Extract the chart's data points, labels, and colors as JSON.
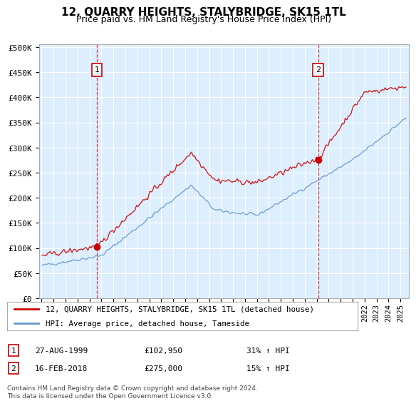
{
  "title": "12, QUARRY HEIGHTS, STALYBRIDGE, SK15 1TL",
  "subtitle": "Price paid vs. HM Land Registry's House Price Index (HPI)",
  "legend_line1": "12, QUARRY HEIGHTS, STALYBRIDGE, SK15 1TL (detached house)",
  "legend_line2": "HPI: Average price, detached house, Tameside",
  "annotation1_date": "27-AUG-1999",
  "annotation1_price": "£102,950",
  "annotation1_hpi": "31% ↑ HPI",
  "annotation2_date": "16-FEB-2018",
  "annotation2_price": "£275,000",
  "annotation2_hpi": "15% ↑ HPI",
  "footer": "Contains HM Land Registry data © Crown copyright and database right 2024.\nThis data is licensed under the Open Government Licence v3.0.",
  "plot_bg_color": "#ddeeff",
  "red_color": "#cc0000",
  "blue_color": "#6699cc",
  "yticks": [
    0,
    50000,
    100000,
    150000,
    200000,
    250000,
    300000,
    350000,
    400000,
    450000,
    500000
  ],
  "ylabels": [
    "£0",
    "£50K",
    "£100K",
    "£150K",
    "£200K",
    "£250K",
    "£300K",
    "£350K",
    "£400K",
    "£450K",
    "£500K"
  ],
  "year_start": 1995,
  "year_end": 2025,
  "sale1_t": 1999.625,
  "sale1_price": 102950,
  "sale2_t": 2018.125,
  "sale2_price": 275000
}
